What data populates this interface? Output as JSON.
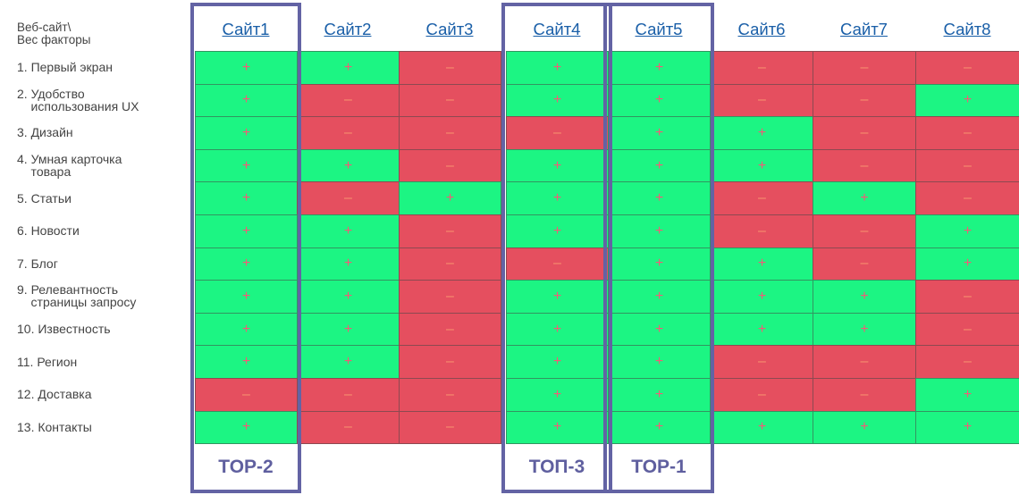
{
  "corner_header": "Веб-сайт\\\nВес факторы",
  "sites": [
    "Сайт1",
    "Сайт2",
    "Сайт3",
    "Сайт4",
    "Сайт5",
    "Сайт6",
    "Сайт7",
    "Сайт8"
  ],
  "symbols": {
    "plus": "+",
    "minus": "–"
  },
  "rows": [
    {
      "label": "1. Первый экран",
      "values": [
        "+",
        "+",
        "–",
        "+",
        "+",
        "–",
        "–",
        "–"
      ]
    },
    {
      "label": "2. Удобство\n    использования UX",
      "values": [
        "+",
        "–",
        "–",
        "+",
        "+",
        "–",
        "–",
        "+"
      ]
    },
    {
      "label": "3. Дизайн",
      "values": [
        "+",
        "–",
        "–",
        "–",
        "+",
        "+",
        "–",
        "–"
      ]
    },
    {
      "label": "4. Умная карточка\n    товара",
      "values": [
        "+",
        "+",
        "–",
        "+",
        "+",
        "+",
        "–",
        "–"
      ]
    },
    {
      "label": "5. Статьи",
      "values": [
        "+",
        "–",
        "+",
        "+",
        "+",
        "–",
        "+",
        "–"
      ]
    },
    {
      "label": "6. Новости",
      "values": [
        "+",
        "+",
        "–",
        "+",
        "+",
        "–",
        "–",
        "+"
      ]
    },
    {
      "label": "7. Блог",
      "values": [
        "+",
        "+",
        "–",
        "–",
        "+",
        "+",
        "–",
        "+"
      ]
    },
    {
      "label": "9. Релевантность\n    страницы запросу",
      "values": [
        "+",
        "+",
        "–",
        "+",
        "+",
        "+",
        "+",
        "–"
      ]
    },
    {
      "label": "10. Известность",
      "values": [
        "+",
        "+",
        "–",
        "+",
        "+",
        "+",
        "+",
        "–"
      ]
    },
    {
      "label": "11. Регион",
      "values": [
        "+",
        "+",
        "–",
        "+",
        "+",
        "–",
        "–",
        "–"
      ]
    },
    {
      "label": "12. Доставка",
      "values": [
        "–",
        "–",
        "–",
        "+",
        "+",
        "–",
        "–",
        "+"
      ]
    },
    {
      "label": "13. Контакты",
      "values": [
        "+",
        "–",
        "–",
        "+",
        "+",
        "+",
        "+",
        "+"
      ]
    }
  ],
  "top_labels": [
    {
      "site_index": 0,
      "text": "TOP-2"
    },
    {
      "site_index": 3,
      "text": "ТОП-3"
    },
    {
      "site_index": 4,
      "text": "TOP-1"
    }
  ],
  "colors": {
    "plus_bg": "#1cf583",
    "minus_bg": "#e54f5f",
    "frame": "#6363a4",
    "link": "#1a5fa8"
  }
}
